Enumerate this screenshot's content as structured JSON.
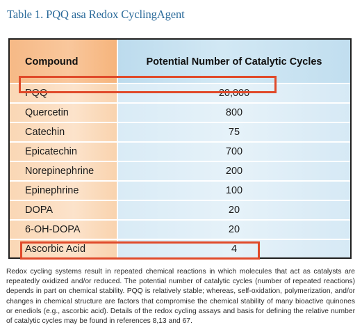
{
  "title": "Table 1. PQQ asa Redox CyclingAgent",
  "table": {
    "header": {
      "compound": "Compound",
      "cycles": "Potential Number of Catalytic Cycles"
    },
    "rows": [
      {
        "compound": "PQQ",
        "cycles": "20,000"
      },
      {
        "compound": "Quercetin",
        "cycles": "800"
      },
      {
        "compound": "Catechin",
        "cycles": "75"
      },
      {
        "compound": "Epicatechin",
        "cycles": "700"
      },
      {
        "compound": "Norepinephrine",
        "cycles": "200"
      },
      {
        "compound": "Epinephrine",
        "cycles": "100"
      },
      {
        "compound": "DOPA",
        "cycles": "20"
      },
      {
        "compound": "6-OH-DOPA",
        "cycles": "20"
      },
      {
        "compound": "Ascorbic Acid",
        "cycles": "4"
      }
    ]
  },
  "caption": "Redox cycling systems result in repeated chemical reactions in which molecules that act as catalysts are repeatedly oxidized and/or reduced. The potential number of catalytic cycles (number of repeated reactions) depends in part on chemical stability. PQQ is relatively stable; whereas, self-oxidation, polymerization, and/or changes in chemical structure are factors that compromise the chemical stability of many bioactive quinones or enediols (e.g., ascorbic acid). Details of the redox cycling assays and basis for defining the relative number of catalytic cycles may be found in references 8,13 and 67.",
  "colors": {
    "title": "#2a6a9a",
    "highlight": "#e04a2a",
    "compound_col": "#fad7b5",
    "cycles_col": "#d9ebf6"
  }
}
